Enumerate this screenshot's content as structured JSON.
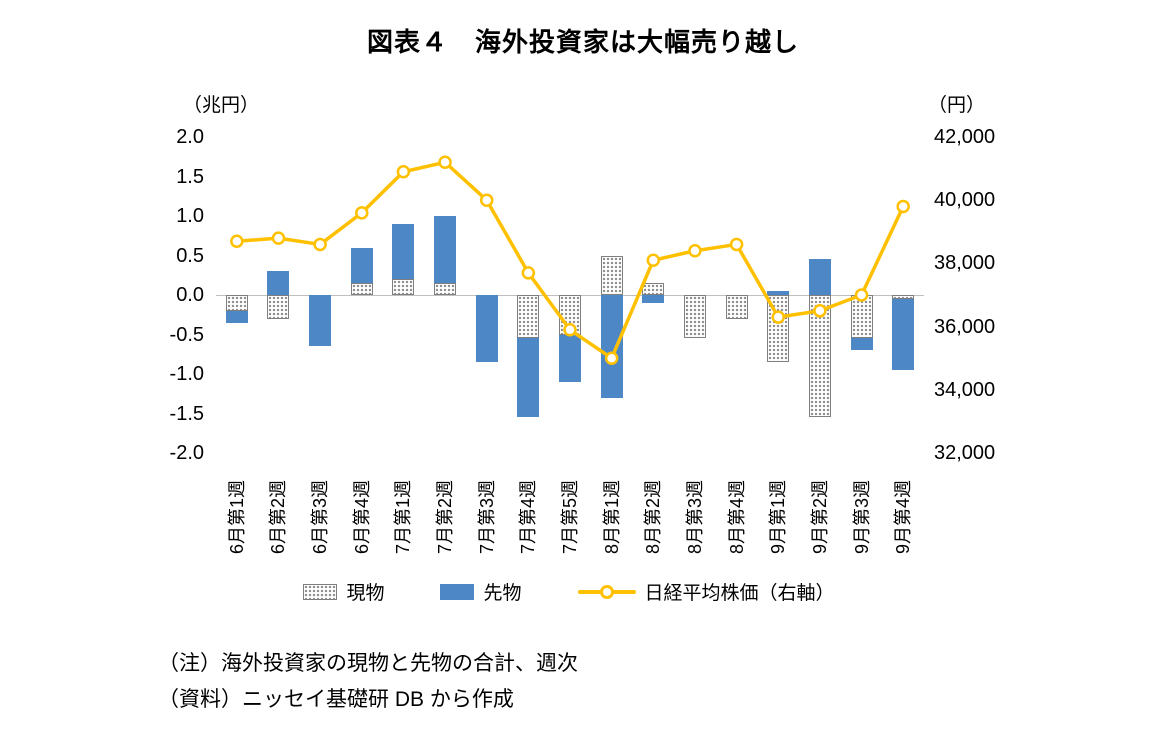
{
  "title": "図表４　海外投資家は大幅売り越し",
  "notes": [
    "（注）海外投資家の現物と先物の合計、週次",
    "（資料）ニッセイ基礎研 DB から作成"
  ],
  "colors": {
    "futures_blue": "#4E87C5",
    "spot_gray": "#8C8C8C",
    "spot_border": "#7F7F7F",
    "nikkei_yellow": "#FFC000",
    "zero_line": "#BFBFBF"
  },
  "legend": {
    "position": "bottom",
    "items": [
      {
        "id": "spot",
        "label": "現物",
        "swatch": "dotted-bar"
      },
      {
        "id": "futures",
        "label": "先物",
        "swatch": "solid-bar"
      },
      {
        "id": "nikkei",
        "label": "日経平均株価（右軸）",
        "swatch": "line-marker"
      }
    ]
  },
  "chart_data": {
    "type": "combo",
    "subtype": "stacked-bar-plus-line",
    "grid": "zero-line-only",
    "legend_position": "bottom",
    "categories": [
      "6月第1週",
      "6月第2週",
      "6月第3週",
      "6月第4週",
      "7月第1週",
      "7月第2週",
      "7月第3週",
      "7月第4週",
      "7月第5週",
      "8月第1週",
      "8月第2週",
      "8月第3週",
      "8月第4週",
      "9月第1週",
      "9月第2週",
      "9月第3週",
      "9月第4週"
    ],
    "series": [
      {
        "id": "spot",
        "name": "現物",
        "type": "bar",
        "swatch": "dotted-bar",
        "axis": "left",
        "values": [
          -0.2,
          -0.3,
          0,
          0.15,
          0.2,
          0.15,
          0,
          -0.55,
          -0.5,
          0.5,
          0.15,
          -0.55,
          -0.3,
          -0.85,
          -1.55,
          -0.55,
          -0.05
        ]
      },
      {
        "id": "futures",
        "name": "先物",
        "type": "bar",
        "swatch": "solid-bar",
        "axis": "left",
        "values": [
          -0.15,
          0.3,
          -0.65,
          0.45,
          0.7,
          0.85,
          -0.85,
          -1.0,
          -0.6,
          -1.3,
          -0.1,
          0,
          0,
          0.05,
          0.45,
          -0.15,
          -0.9
        ]
      },
      {
        "id": "nikkei",
        "name": "日経平均株価（右軸）",
        "type": "line",
        "axis": "right",
        "color": "#FFC000",
        "values": [
          38700,
          38800,
          38600,
          39600,
          40900,
          41200,
          40000,
          37700,
          35900,
          35000,
          38100,
          38400,
          38600,
          36300,
          36500,
          37000,
          39800
        ]
      }
    ],
    "left_axis": {
      "unit": "（兆円）",
      "min": -2.0,
      "max": 2.0,
      "step": 0.5,
      "ticks": [
        "2.0",
        "1.5",
        "1.0",
        "0.5",
        "0.0",
        "-0.5",
        "-1.0",
        "-1.5",
        "-2.0"
      ]
    },
    "right_axis": {
      "unit": "（円）",
      "min": 32000,
      "max": 42000,
      "step": 2000,
      "ticks": [
        "42,000",
        "40,000",
        "38,000",
        "36,000",
        "34,000",
        "32,000"
      ]
    }
  }
}
